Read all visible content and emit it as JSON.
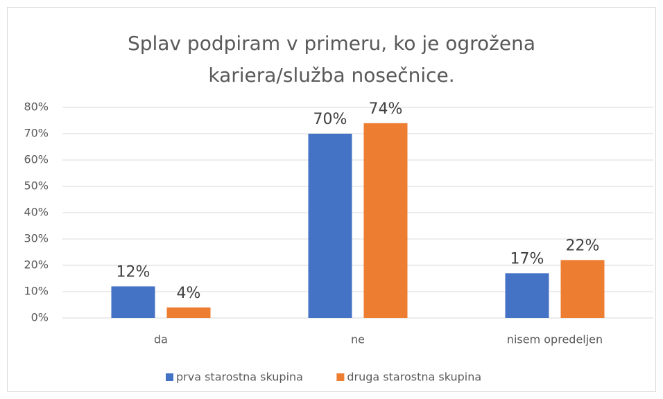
{
  "chart_data": {
    "type": "bar",
    "title": "Splav podpiram v primeru, ko je ogrožena kariera/služba nosečnice.",
    "categories": [
      "da",
      "ne",
      "nisem opredeljen"
    ],
    "series": [
      {
        "name": "prva starostna skupina",
        "color": "#4472c4",
        "values": [
          12,
          70,
          17
        ],
        "value_labels": [
          "12%",
          "70%",
          "17%"
        ]
      },
      {
        "name": "druga starostna skupina",
        "color": "#ed7d31",
        "values": [
          4,
          74,
          22
        ],
        "value_labels": [
          "4%",
          "74%",
          "22%"
        ]
      }
    ],
    "ylim": [
      0,
      80
    ],
    "yticks": [
      {
        "value": 0,
        "label": "0%"
      },
      {
        "value": 10,
        "label": "10%"
      },
      {
        "value": 20,
        "label": "20%"
      },
      {
        "value": 30,
        "label": "30%"
      },
      {
        "value": 40,
        "label": "40%"
      },
      {
        "value": 50,
        "label": "50%"
      },
      {
        "value": 60,
        "label": "60%"
      },
      {
        "value": 70,
        "label": "70%"
      },
      {
        "value": 80,
        "label": "80%"
      }
    ],
    "grid": true,
    "legend": "bottom"
  }
}
